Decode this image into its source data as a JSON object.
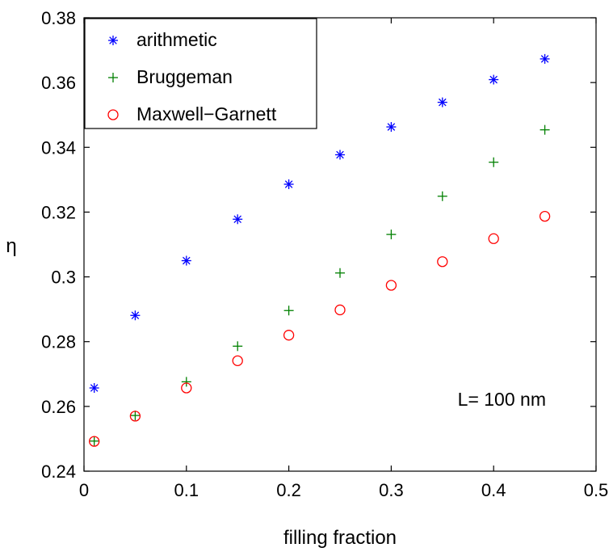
{
  "chart_data": {
    "type": "scatter",
    "xlabel": "filling fraction",
    "ylabel": "η",
    "xlim": [
      0,
      0.5
    ],
    "ylim": [
      0.24,
      0.38
    ],
    "xticks": [
      "0",
      "0.1",
      "0.2",
      "0.3",
      "0.4",
      "0.5"
    ],
    "yticks": [
      "0.24",
      "0.26",
      "0.28",
      "0.3",
      "0.32",
      "0.34",
      "0.36",
      "0.38"
    ],
    "grid": false,
    "legend_position": "top-left",
    "annotation": "L= 100 nm",
    "series": [
      {
        "name": "arithmetic",
        "marker": "asterisk",
        "color": "#0000ff",
        "x": [
          0.01,
          0.05,
          0.1,
          0.15,
          0.2,
          0.25,
          0.3,
          0.35,
          0.4,
          0.45
        ],
        "y": [
          0.2657,
          0.2881,
          0.305,
          0.3178,
          0.3286,
          0.3377,
          0.3463,
          0.3539,
          0.3609,
          0.3673
        ]
      },
      {
        "name": "Bruggeman",
        "marker": "plus",
        "color": "#008000",
        "x": [
          0.01,
          0.05,
          0.1,
          0.15,
          0.2,
          0.25,
          0.3,
          0.35,
          0.4,
          0.45
        ],
        "y": [
          0.2493,
          0.2572,
          0.2676,
          0.2786,
          0.2896,
          0.3012,
          0.3131,
          0.3249,
          0.3354,
          0.3454
        ]
      },
      {
        "name": "Maxwell−Garnett",
        "marker": "circle",
        "color": "#ff0000",
        "x": [
          0.01,
          0.05,
          0.1,
          0.15,
          0.2,
          0.25,
          0.3,
          0.35,
          0.4,
          0.45
        ],
        "y": [
          0.2492,
          0.257,
          0.2657,
          0.2741,
          0.282,
          0.2898,
          0.2974,
          0.3047,
          0.3118,
          0.3187
        ]
      }
    ]
  }
}
